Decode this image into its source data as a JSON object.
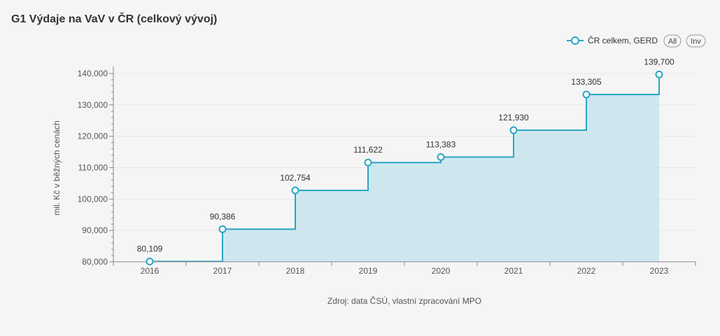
{
  "title": "G1 Výdaje na VaV v ČR (celkový vývoj)",
  "legend": {
    "series_label": "ČR celkem, GERD",
    "all_button": "All",
    "inv_button": "Inv"
  },
  "source": "Zdroj: data ČSÚ, vlastní zpracování MPO",
  "colors": {
    "line": "#2aa5c4",
    "area": "#cbe6ee",
    "grid": "#e6e6e6",
    "axis": "#888888"
  },
  "chart_data": {
    "type": "area",
    "step": "start",
    "title": "G1 Výdaje na VaV v ČR (celkový vývoj)",
    "xlabel": "",
    "ylabel": "mil. Kč v běžných cenách",
    "ylim": [
      80000,
      140000
    ],
    "yticks": [
      80000,
      90000,
      100000,
      110000,
      120000,
      130000,
      140000
    ],
    "ytick_labels": [
      "80,000",
      "90,000",
      "100,000",
      "110,000",
      "120,000",
      "130,000",
      "140,000"
    ],
    "categories": [
      "2016",
      "2017",
      "2018",
      "2019",
      "2020",
      "2021",
      "2022",
      "2023"
    ],
    "series": [
      {
        "name": "ČR celkem, GERD",
        "values": [
          80109,
          90386,
          102754,
          111622,
          113383,
          121930,
          133305,
          139700
        ],
        "labels": [
          "80,109",
          "90,386",
          "102,754",
          "111,622",
          "113,383",
          "121,930",
          "133,305",
          "139,700"
        ]
      }
    ],
    "grid": true,
    "legend_position": "top-right"
  }
}
